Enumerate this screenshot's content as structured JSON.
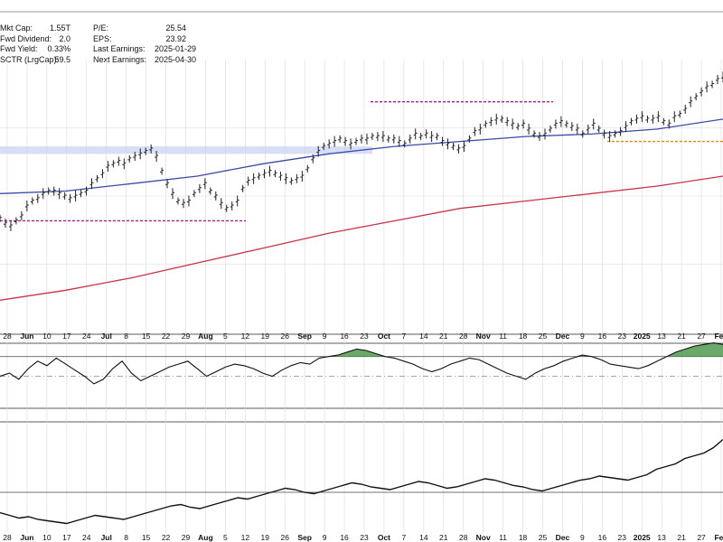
{
  "stats_left": [
    {
      "label": "Mkt Cap:",
      "value": "1.55T"
    },
    {
      "label": "Fwd Dividend:",
      "value": "2.0"
    },
    {
      "label": "Fwd Yield:",
      "value": "0.33%"
    },
    {
      "label": "SCTR (LrgCap):",
      "value": "59.5"
    }
  ],
  "stats_right": [
    {
      "label": "P/E:",
      "value": "25.54"
    },
    {
      "label": "EPS:",
      "value": "23.92"
    },
    {
      "label": "Last Earnings:",
      "value": "2025-01-29"
    },
    {
      "label": "Next Earnings:",
      "value": "2025-04-30"
    }
  ],
  "colors": {
    "price": "#222222",
    "ma50": "#3a4aa8",
    "ma200": "#c8334a",
    "resistance": "#b0189c",
    "support": "#e08a00",
    "zone": "#c9d3f2",
    "rsi_fill": "#4f9a4f",
    "grid": "#d9d9d9"
  },
  "chart_data": {
    "type": "line",
    "x_axis_labels": [
      "28",
      "Jun",
      "10",
      "17",
      "24",
      "Jul",
      "8",
      "15",
      "22",
      "29",
      "Aug",
      "5",
      "12",
      "19",
      "26",
      "Sep",
      "9",
      "16",
      "23",
      "Oct",
      "7",
      "14",
      "21",
      "28",
      "Nov",
      "11",
      "18",
      "25",
      "Dec",
      "9",
      "16",
      "23",
      "2025",
      "13",
      "21",
      "27",
      "Feb"
    ],
    "grid": true,
    "series": [
      {
        "name": "",
        "values": [
          46,
          44,
          43,
          45,
          47,
          51,
          53,
          54,
          56,
          57,
          57,
          56,
          55,
          54,
          55,
          56,
          57,
          60,
          62,
          64,
          67,
          68,
          69,
          68,
          70,
          71,
          72,
          73,
          74,
          71,
          65,
          60,
          56,
          53,
          52,
          53,
          56,
          58,
          60,
          57,
          55,
          52,
          50,
          51,
          53,
          58,
          61,
          62,
          63,
          64,
          65,
          64,
          63,
          62,
          61,
          62,
          63,
          66,
          70,
          73,
          75,
          76,
          77,
          78,
          77,
          76,
          77,
          78,
          78,
          79,
          79,
          79,
          78,
          78,
          77,
          76,
          78,
          80,
          79,
          80,
          79,
          79,
          77,
          76,
          75,
          74,
          75,
          78,
          81,
          82,
          84,
          85,
          86,
          86,
          85,
          84,
          83,
          84,
          82,
          80,
          79,
          80,
          82,
          84,
          85,
          84,
          83,
          82,
          80,
          82,
          84,
          82,
          80,
          79,
          80,
          81,
          83,
          85,
          86,
          87,
          86,
          86,
          87,
          85,
          84,
          87,
          88,
          90,
          93,
          95,
          97,
          99,
          100,
          102,
          103
        ]
      },
      {
        "name": "",
        "values": [
          56,
          57,
          60,
          63,
          68,
          72,
          75,
          77,
          79,
          80,
          82,
          86
        ]
      },
      {
        "name": "",
        "values": [
          13,
          17,
          22,
          28,
          34,
          40,
          45,
          50,
          53,
          56,
          59,
          63
        ]
      }
    ],
    "resistance_levels": [
      75,
      93,
      75
    ],
    "support_level": 77,
    "panel_indicator_1": {
      "values": [
        50,
        52,
        48,
        55,
        60,
        57,
        62,
        58,
        54,
        50,
        45,
        48,
        55,
        60,
        52,
        47,
        50,
        53,
        56,
        58,
        60,
        55,
        50,
        53,
        56,
        58,
        57,
        55,
        52,
        50,
        54,
        57,
        59,
        58,
        62,
        63,
        64,
        66,
        68,
        67,
        65,
        63,
        62,
        60,
        58,
        55,
        53,
        55,
        58,
        60,
        62,
        61,
        58,
        55,
        52,
        50,
        48,
        52,
        55,
        57,
        60,
        62,
        64,
        63,
        61,
        58,
        57,
        56,
        55,
        57,
        60,
        63,
        66,
        68,
        70,
        71,
        72,
        71
      ]
    },
    "panel_indicator_2": {
      "values": [
        30,
        28,
        26,
        27,
        25,
        24,
        23,
        22,
        24,
        26,
        28,
        27,
        26,
        25,
        27,
        29,
        31,
        33,
        35,
        36,
        34,
        33,
        35,
        37,
        39,
        41,
        40,
        42,
        44,
        46,
        48,
        47,
        45,
        44,
        46,
        48,
        50,
        52,
        51,
        49,
        48,
        47,
        49,
        51,
        53,
        52,
        50,
        48,
        49,
        51,
        53,
        55,
        54,
        52,
        50,
        49,
        47,
        46,
        48,
        50,
        52,
        54,
        55,
        57,
        56,
        55,
        54,
        56,
        58,
        62,
        64,
        66,
        70,
        72,
        74,
        78,
        84
      ]
    }
  }
}
